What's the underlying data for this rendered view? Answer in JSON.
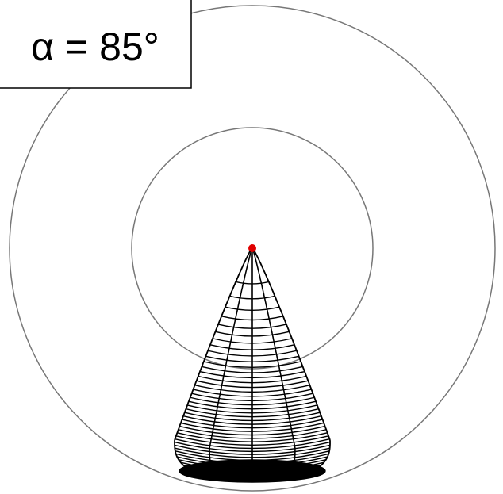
{
  "label": "α = 85°"
}
